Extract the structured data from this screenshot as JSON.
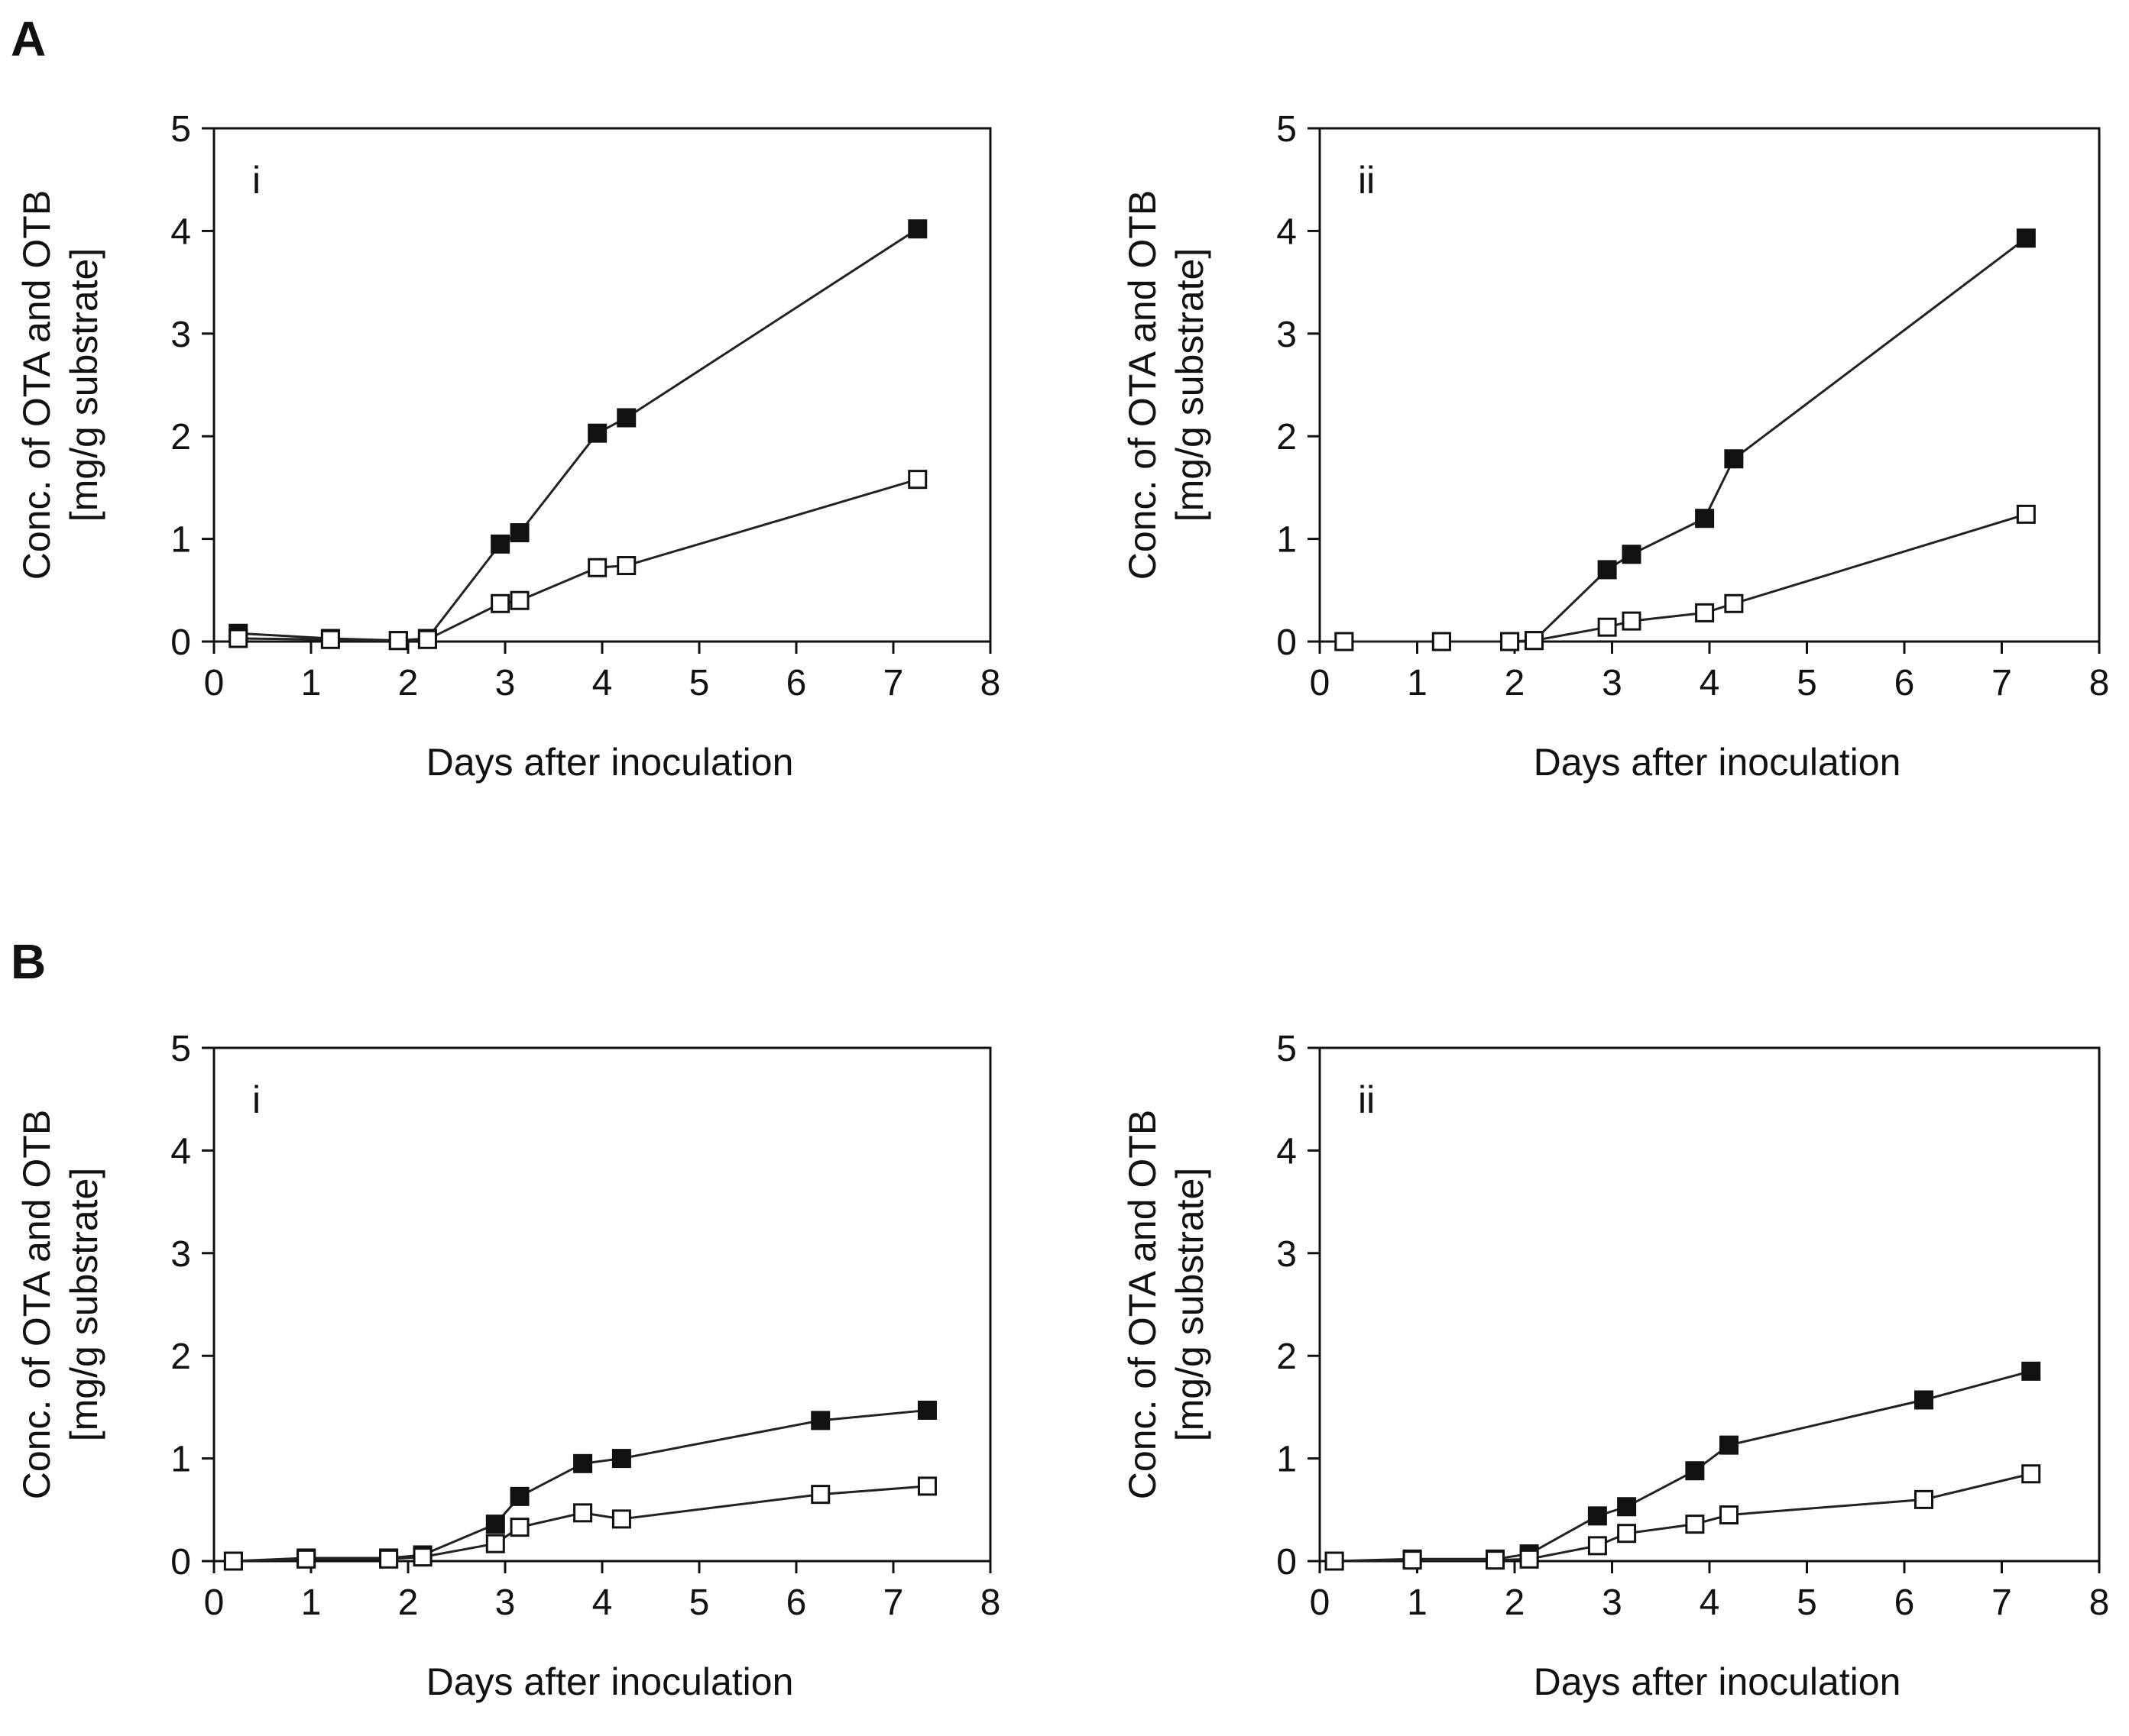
{
  "panels": {
    "A": "A",
    "B": "B"
  },
  "colors": {
    "axis": "#111111",
    "line": "#222222",
    "filled_marker": "#111111",
    "open_marker_fill": "#ffffff"
  },
  "chart_data": [
    {
      "type": "line",
      "panel": "A",
      "subplot": "i",
      "xlabel": "Days after inoculation",
      "ylabel": [
        "Conc. of OTA and OTB",
        "[mg/g substrate]"
      ],
      "xlim": [
        0,
        8
      ],
      "ylim": [
        0,
        5
      ],
      "xticks": [
        "0",
        "1",
        "2",
        "3",
        "4",
        "5",
        "6",
        "7",
        "8"
      ],
      "yticks": [
        "0",
        "1",
        "2",
        "3",
        "4",
        "5"
      ],
      "series": [
        {
          "name": "filled",
          "marker": "filled-square",
          "x": [
            0.25,
            1.2,
            1.9,
            2.2,
            2.95,
            3.15,
            3.95,
            4.25,
            7.25
          ],
          "y": [
            0.08,
            0.03,
            0.01,
            0.03,
            0.95,
            1.06,
            2.03,
            2.18,
            4.02
          ]
        },
        {
          "name": "open",
          "marker": "open-square",
          "x": [
            0.25,
            1.2,
            1.9,
            2.2,
            2.95,
            3.15,
            3.95,
            4.25,
            7.25
          ],
          "y": [
            0.03,
            0.02,
            0.01,
            0.02,
            0.37,
            0.4,
            0.72,
            0.74,
            1.58
          ]
        }
      ]
    },
    {
      "type": "line",
      "panel": "A",
      "subplot": "ii",
      "xlabel": "Days after inoculation",
      "ylabel": [
        "Conc. of OTA and OTB",
        "[mg/g substrate]"
      ],
      "xlim": [
        0,
        8
      ],
      "ylim": [
        0,
        5
      ],
      "xticks": [
        "0",
        "1",
        "2",
        "3",
        "4",
        "5",
        "6",
        "7",
        "8"
      ],
      "yticks": [
        "0",
        "1",
        "2",
        "3",
        "4",
        "5"
      ],
      "series": [
        {
          "name": "filled",
          "marker": "filled-square",
          "x": [
            0.25,
            1.25,
            1.95,
            2.2,
            2.95,
            3.2,
            3.95,
            4.25,
            7.25
          ],
          "y": [
            0.0,
            0.0,
            0.0,
            0.01,
            0.7,
            0.85,
            1.2,
            1.78,
            3.93
          ]
        },
        {
          "name": "open",
          "marker": "open-square",
          "x": [
            0.25,
            1.25,
            1.95,
            2.2,
            2.95,
            3.2,
            3.95,
            4.25,
            7.25
          ],
          "y": [
            0.0,
            0.0,
            0.0,
            0.01,
            0.14,
            0.2,
            0.28,
            0.37,
            1.24
          ]
        }
      ]
    },
    {
      "type": "line",
      "panel": "B",
      "subplot": "i",
      "xlabel": "Days after inoculation",
      "ylabel": [
        "Conc. of OTA and OTB",
        "[mg/g substrate]"
      ],
      "xlim": [
        0,
        8
      ],
      "ylim": [
        0,
        5
      ],
      "xticks": [
        "0",
        "1",
        "2",
        "3",
        "4",
        "5",
        "6",
        "7",
        "8"
      ],
      "yticks": [
        "0",
        "1",
        "2",
        "3",
        "4",
        "5"
      ],
      "series": [
        {
          "name": "filled",
          "marker": "filled-square",
          "x": [
            0.2,
            0.95,
            1.8,
            2.15,
            2.9,
            3.15,
            3.8,
            4.2,
            6.25,
            7.35
          ],
          "y": [
            0.0,
            0.03,
            0.03,
            0.06,
            0.36,
            0.63,
            0.95,
            1.0,
            1.37,
            1.47
          ]
        },
        {
          "name": "open",
          "marker": "open-square",
          "x": [
            0.2,
            0.95,
            1.8,
            2.15,
            2.9,
            3.15,
            3.8,
            4.2,
            6.25,
            7.35
          ],
          "y": [
            0.0,
            0.02,
            0.02,
            0.04,
            0.17,
            0.33,
            0.47,
            0.41,
            0.65,
            0.73
          ]
        }
      ]
    },
    {
      "type": "line",
      "panel": "B",
      "subplot": "ii",
      "xlabel": "Days after inoculation",
      "ylabel": [
        "Conc. of OTA and OTB",
        "[mg/g substrate]"
      ],
      "xlim": [
        0,
        8
      ],
      "ylim": [
        0,
        5
      ],
      "xticks": [
        "0",
        "1",
        "2",
        "3",
        "4",
        "5",
        "6",
        "7",
        "8"
      ],
      "yticks": [
        "0",
        "1",
        "2",
        "3",
        "4",
        "5"
      ],
      "series": [
        {
          "name": "filled",
          "marker": "filled-square",
          "x": [
            0.15,
            0.95,
            1.8,
            2.15,
            2.85,
            3.15,
            3.85,
            4.2,
            6.2,
            7.3
          ],
          "y": [
            0.0,
            0.02,
            0.02,
            0.07,
            0.44,
            0.53,
            0.88,
            1.13,
            1.57,
            1.85
          ]
        },
        {
          "name": "open",
          "marker": "open-square",
          "x": [
            0.15,
            0.95,
            1.8,
            2.15,
            2.85,
            3.15,
            3.85,
            4.2,
            6.2,
            7.3
          ],
          "y": [
            0.0,
            0.01,
            0.01,
            0.02,
            0.15,
            0.27,
            0.36,
            0.45,
            0.6,
            0.85
          ]
        }
      ]
    }
  ]
}
